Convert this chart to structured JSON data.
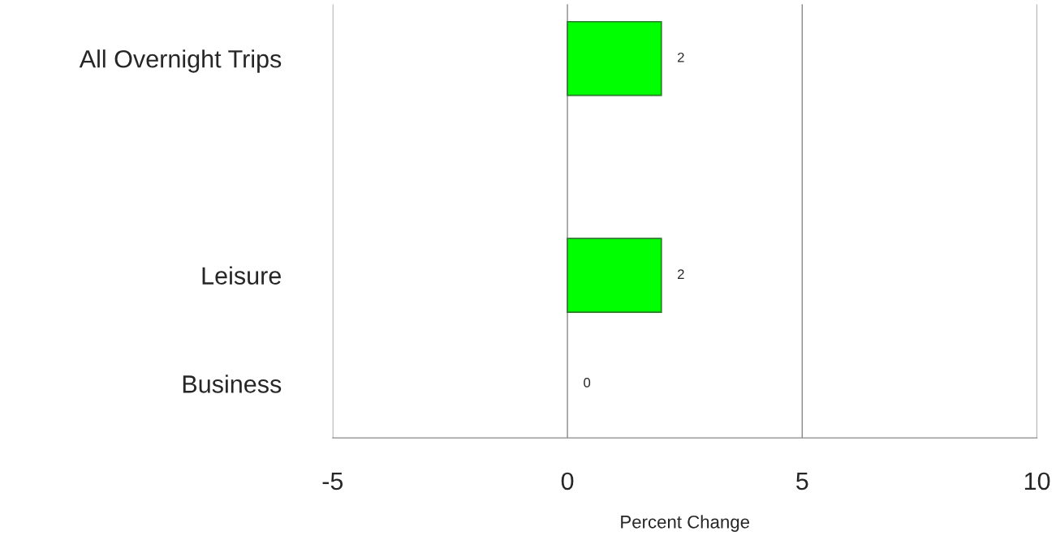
{
  "chart_data": {
    "type": "bar",
    "orientation": "horizontal",
    "xlabel": "Percent Change",
    "categories": [
      "All Overnight Trips",
      null,
      "Leisure",
      "Business"
    ],
    "values": [
      2,
      null,
      2,
      0
    ],
    "color": "#00ff00",
    "xlim": [
      -5,
      10
    ],
    "xticks": [
      -5,
      0,
      5,
      10
    ],
    "grid": "x",
    "data_labels": true,
    "legend": false
  }
}
